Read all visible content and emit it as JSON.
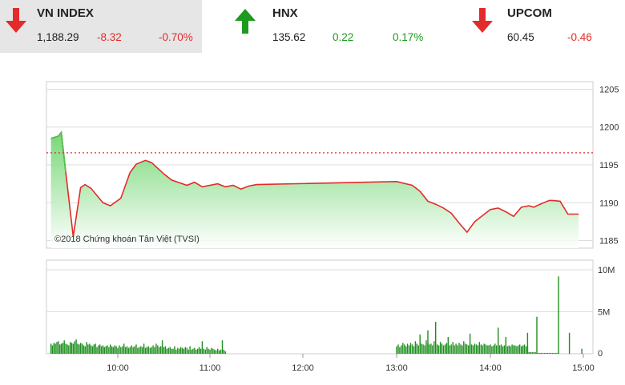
{
  "tickers": [
    {
      "name": "VN INDEX",
      "value": "1,188.29",
      "change": "-8.32",
      "pct": "-0.70%",
      "direction": "down"
    },
    {
      "name": "HNX",
      "value": "135.62",
      "change": "0.22",
      "pct": "0.17%",
      "direction": "up"
    },
    {
      "name": "UPCOM",
      "value": "60.45",
      "change": "-0.46",
      "pct": "",
      "direction": "down"
    }
  ],
  "colors": {
    "down": "#e32b2b",
    "up": "#1e9a1e",
    "line": "#e32b2b",
    "area": "#6fd66f",
    "volume": "#1e8f1e"
  },
  "chart_data": [
    {
      "type": "line",
      "title": "",
      "xlabel": "",
      "ylabel": "",
      "ylim": [
        1184,
        1206
      ],
      "xlim": [
        "09:12",
        "15:00"
      ],
      "y_ticks": [
        "1185",
        "1190",
        "1195",
        "1200",
        "1205"
      ],
      "reference_value": 1196.6,
      "annotation": "©2018 Chứng khoán Tân Việt (TVSI)",
      "grid": true,
      "x": [
        "09:15",
        "09:20",
        "09:22",
        "09:25",
        "09:30",
        "09:35",
        "09:38",
        "09:42",
        "09:50",
        "09:55",
        "10:02",
        "10:08",
        "10:12",
        "10:18",
        "10:22",
        "10:30",
        "10:35",
        "10:45",
        "10:50",
        "10:55",
        "11:05",
        "11:10",
        "11:15",
        "11:20",
        "11:25",
        "11:30",
        "13:00",
        "13:10",
        "13:15",
        "13:20",
        "13:25",
        "13:30",
        "13:35",
        "13:40",
        "13:45",
        "13:50",
        "14:00",
        "14:05",
        "14:10",
        "14:15",
        "14:20",
        "14:25",
        "14:28",
        "14:32",
        "14:38",
        "14:40",
        "14:45",
        "14:50",
        "14:55",
        "14:57"
      ],
      "values": [
        1198.5,
        1198.8,
        1199.3,
        1194,
        1185.5,
        1192,
        1192.4,
        1191.9,
        1190,
        1189.6,
        1190.6,
        1194,
        1195.1,
        1195.6,
        1195.3,
        1193.8,
        1193,
        1192.3,
        1192.7,
        1192.1,
        1192.5,
        1192.1,
        1192.3,
        1191.8,
        1192.2,
        1192.4,
        1192.8,
        1192.3,
        1191.5,
        1190.2,
        1189.8,
        1189.3,
        1188.6,
        1187.3,
        1186.1,
        1187.5,
        1189.1,
        1189.3,
        1188.8,
        1188.2,
        1189.4,
        1189.6,
        1189.4,
        1189.8,
        1190.3,
        1190.3,
        1190.2,
        1188.5,
        1188.5,
        1188.5
      ]
    },
    {
      "type": "bar",
      "title": "",
      "xlabel": "",
      "ylabel": "",
      "ylim": [
        0,
        10
      ],
      "y_ticks": [
        "0",
        "5M",
        "10M"
      ],
      "x_ticks": [
        "10:00",
        "11:00",
        "12:00",
        "13:00",
        "14:00",
        "15:00"
      ],
      "unit": "M",
      "morning": {
        "start": "09:15",
        "step_minutes": 1,
        "values": [
          1.2,
          1.0,
          1.3,
          1.2,
          1.4,
          1.5,
          1.1,
          1.2,
          1.3,
          1.6,
          1.2,
          1.1,
          1.0,
          1.4,
          1.3,
          1.2,
          1.5,
          1.7,
          1.2,
          1.1,
          1.3,
          1.2,
          1.0,
          0.9,
          1.4,
          1.1,
          1.2,
          1.0,
          0.9,
          1.1,
          1.2,
          0.8,
          1.0,
          1.1,
          0.9,
          1.0,
          0.8,
          0.9,
          1.0,
          0.8,
          1.1,
          0.9,
          0.8,
          1.0,
          0.9,
          0.7,
          1.0,
          0.8,
          0.9,
          1.2,
          0.8,
          0.9,
          0.7,
          0.8,
          1.0,
          0.8,
          0.9,
          1.1,
          0.7,
          0.8,
          0.9,
          0.8,
          1.2,
          0.7,
          0.8,
          0.9,
          0.7,
          0.8,
          1.0,
          0.8,
          1.2,
          1.0,
          0.8,
          0.9,
          1.6,
          0.8,
          0.9,
          0.6,
          0.7,
          0.8,
          0.6,
          0.6,
          0.9,
          0.5,
          0.7,
          0.6,
          0.8,
          0.7,
          0.6,
          0.8,
          0.7,
          0.5,
          0.9,
          0.5,
          0.6,
          0.7,
          0.5,
          0.6,
          0.8,
          0.6,
          1.5,
          0.6,
          0.5,
          0.8,
          0.6,
          0.5,
          0.7,
          0.6,
          0.5,
          0.4,
          0.6,
          0.4,
          0.5,
          1.6,
          0.5,
          0.3
        ]
      },
      "afternoon": {
        "start": "13:00",
        "step_minutes": 1,
        "values": [
          0.9,
          1.1,
          0.8,
          1.0,
          1.3,
          1.1,
          0.9,
          1.2,
          1.0,
          1.3,
          1.1,
          0.9,
          1.5,
          1.2,
          1.0,
          1.4,
          1.2,
          1.1,
          1.0,
          1.6,
          1.3,
          1.1,
          1.2,
          1.0,
          1.5,
          1.2,
          1.1,
          1.0,
          1.4,
          1.2,
          1.0,
          1.1,
          1.3,
          1.2,
          1.0,
          1.1,
          1.4,
          1.0,
          1.2,
          1.0,
          1.3,
          1.1,
          1.0,
          1.5,
          1.2,
          1.1,
          1.0,
          1.3,
          1.1,
          1.0,
          1.2,
          1.1,
          1.0,
          1.4,
          1.1,
          1.0,
          1.2,
          1.1,
          1.0,
          1.0,
          1.1,
          0.9,
          1.0,
          1.2,
          1.0,
          0.9,
          1.0,
          1.1,
          0.9,
          1.0,
          1.1,
          0.9,
          1.0,
          0.9,
          1.1,
          1.0,
          1.0,
          0.9,
          1.0,
          1.1,
          0.9,
          1.0,
          1.1,
          0.9,
          0.9,
          0.2,
          0.2,
          0.2,
          0.2,
          0.2,
          0.1,
          0.1,
          0.1,
          0.1,
          0.1,
          0.1,
          0.1,
          0.1,
          0.1,
          0.1,
          0.1,
          0.1,
          0.1,
          0.1,
          0.1
        ],
        "spikes": [
          {
            "time": "13:25",
            "value": 3.8
          },
          {
            "time": "13:15",
            "value": 2.3
          },
          {
            "time": "13:20",
            "value": 2.8
          },
          {
            "time": "13:33",
            "value": 2.0
          },
          {
            "time": "13:47",
            "value": 2.4
          },
          {
            "time": "14:05",
            "value": 3.1
          },
          {
            "time": "14:10",
            "value": 2.0
          },
          {
            "time": "14:24",
            "value": 2.5
          },
          {
            "time": "14:30",
            "value": 4.4
          },
          {
            "time": "14:44",
            "value": 9.2
          },
          {
            "time": "14:51",
            "value": 2.5
          }
        ]
      },
      "closing_bar": {
        "time": "14:59",
        "value": 0.6
      }
    }
  ]
}
